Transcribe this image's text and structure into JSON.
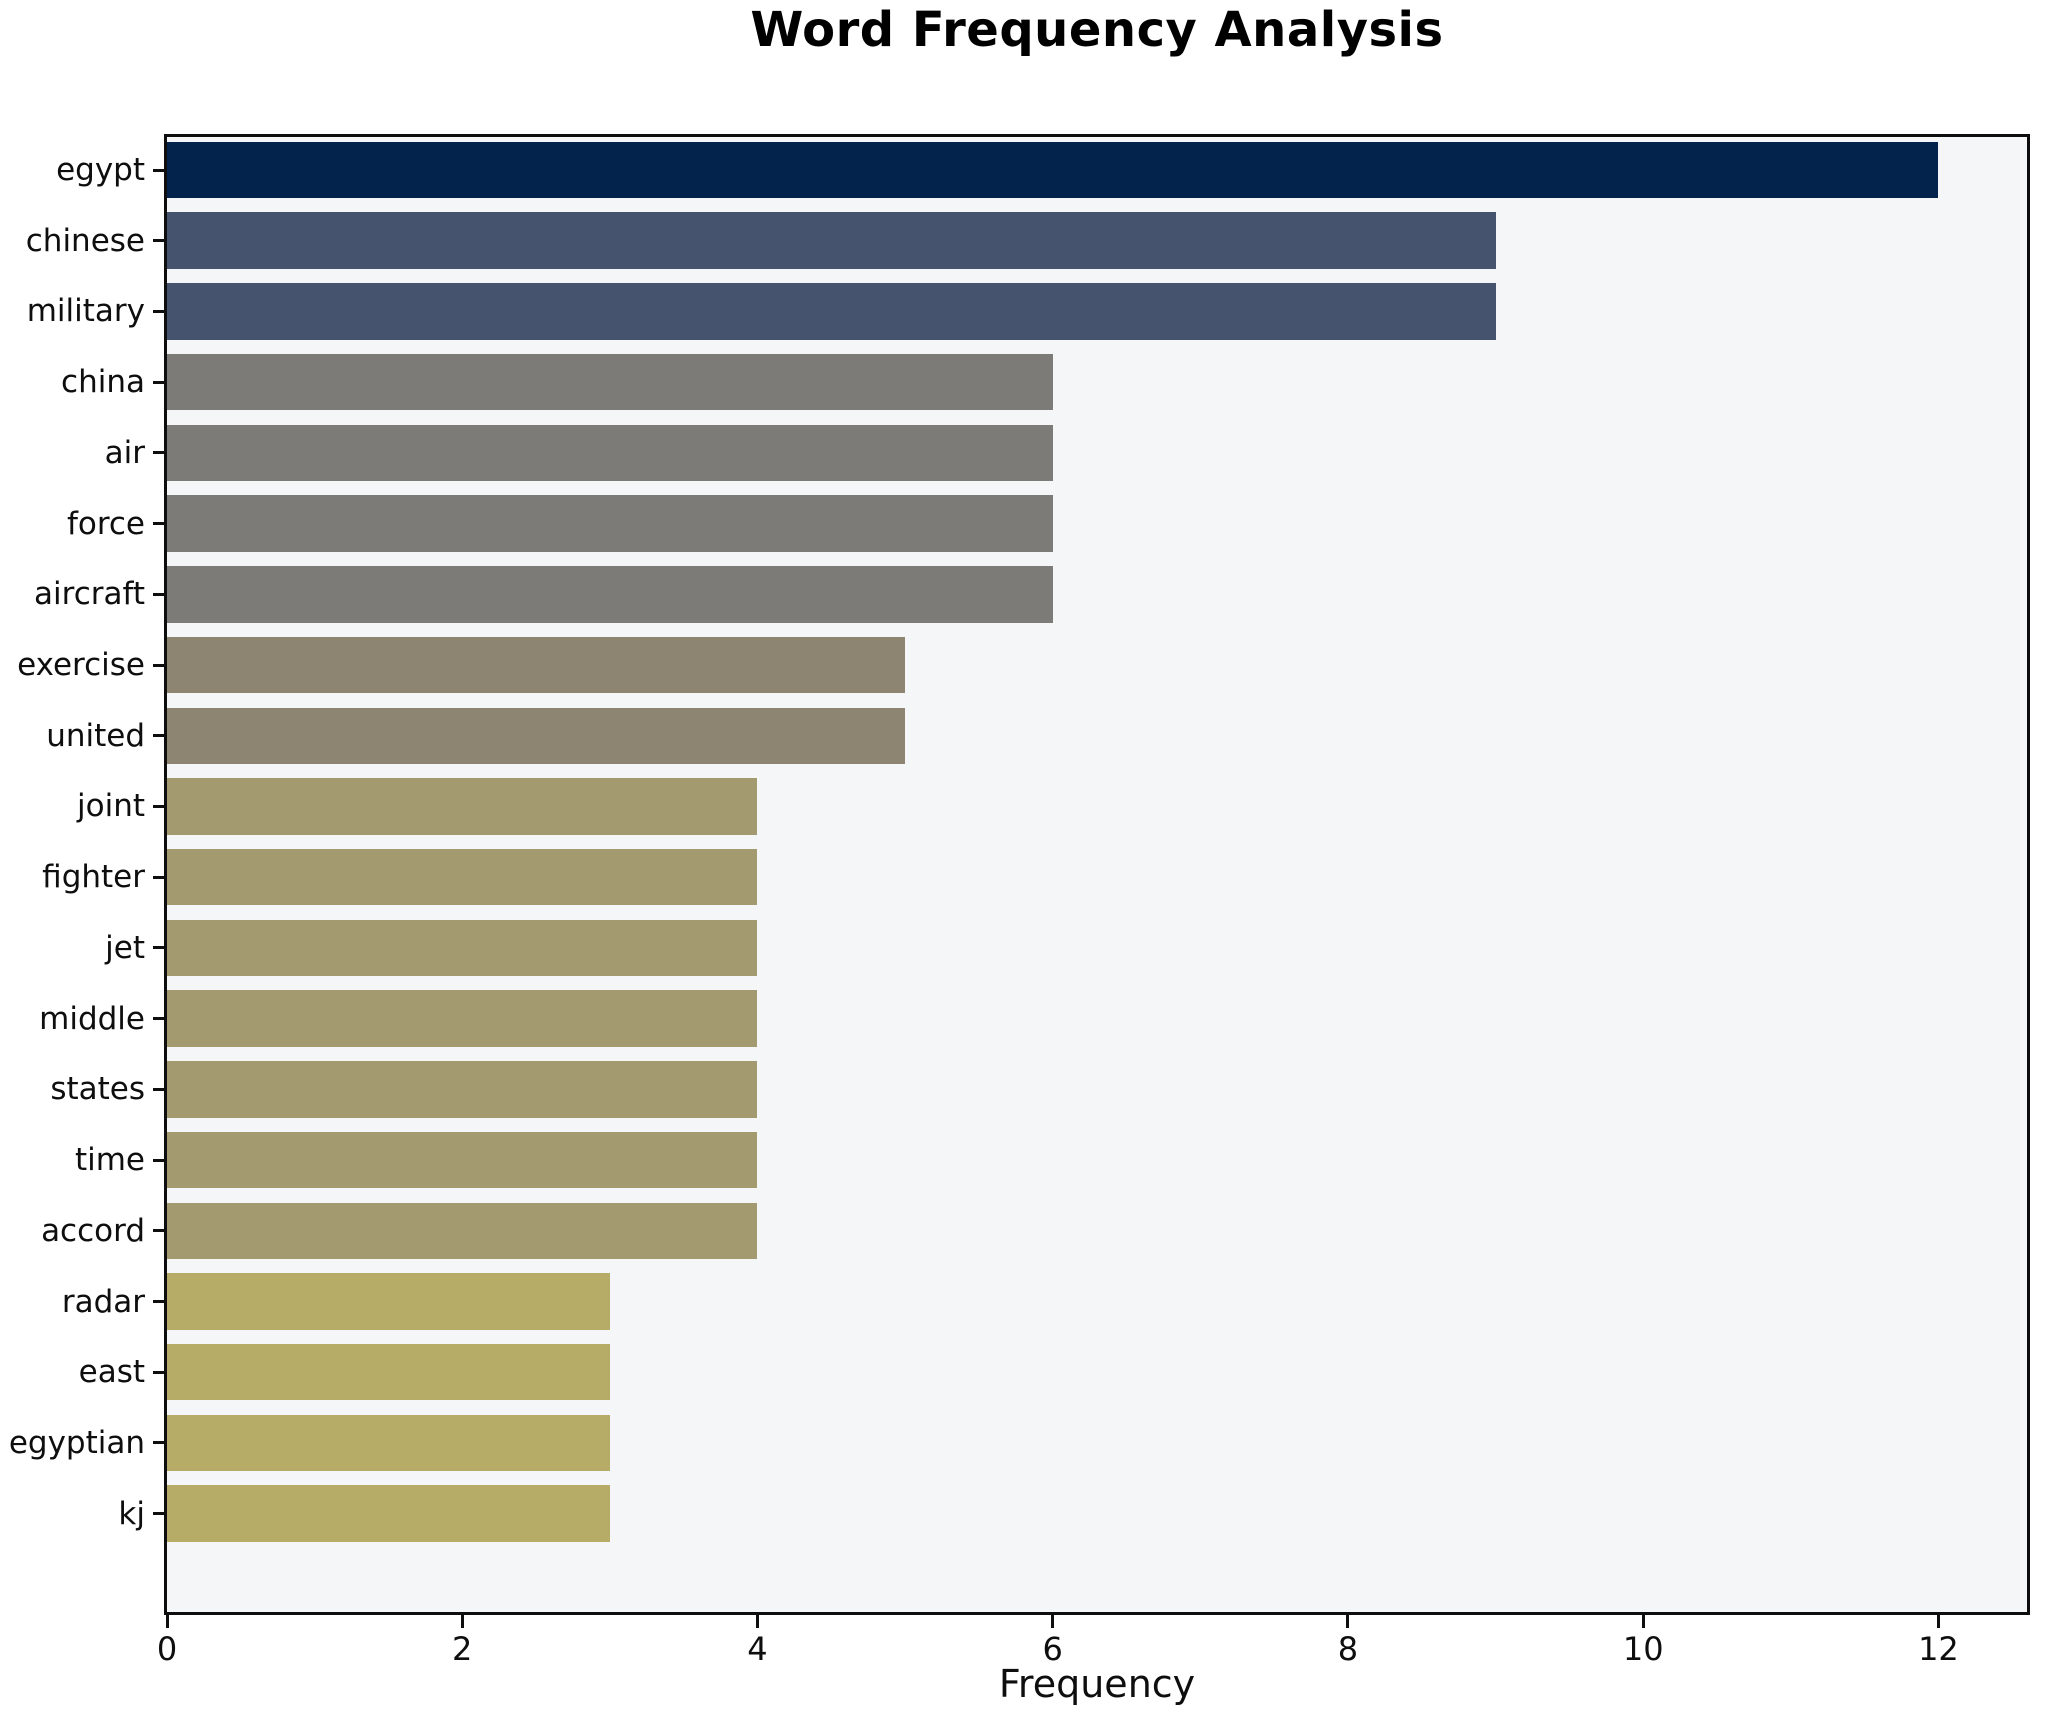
{
  "figure": {
    "title": "Word Frequency Analysis",
    "xlabel": "Frequency"
  },
  "chart_data": {
    "type": "bar",
    "orientation": "horizontal",
    "title": "Word Frequency Analysis",
    "xlabel": "Frequency",
    "ylabel": "",
    "categories": [
      "egypt",
      "chinese",
      "military",
      "china",
      "air",
      "force",
      "aircraft",
      "exercise",
      "united",
      "joint",
      "fighter",
      "jet",
      "middle",
      "states",
      "time",
      "accord",
      "radar",
      "east",
      "egyptian",
      "kj"
    ],
    "values": [
      12,
      9,
      9,
      6,
      6,
      6,
      6,
      5,
      5,
      4,
      4,
      4,
      4,
      4,
      4,
      4,
      3,
      3,
      3,
      3
    ],
    "bar_colors": [
      "#03234D",
      "#46536F",
      "#46536F",
      "#7C7B77",
      "#7C7B77",
      "#7C7B77",
      "#7C7B77",
      "#8D8572",
      "#8D8572",
      "#A39A70",
      "#A39A70",
      "#A39A70",
      "#A39A70",
      "#A39A70",
      "#A39A70",
      "#A39A70",
      "#B6AB67",
      "#B6AB67",
      "#B6AB67",
      "#B6AB67"
    ],
    "xticks": [
      0,
      2,
      4,
      6,
      8,
      10,
      12
    ],
    "xlim": [
      0,
      12.6
    ],
    "grid": false,
    "legend_position": "none",
    "plot_background": "#F5F6F7",
    "spine_color": "#0E0E0E",
    "text_color": "#000000"
  }
}
